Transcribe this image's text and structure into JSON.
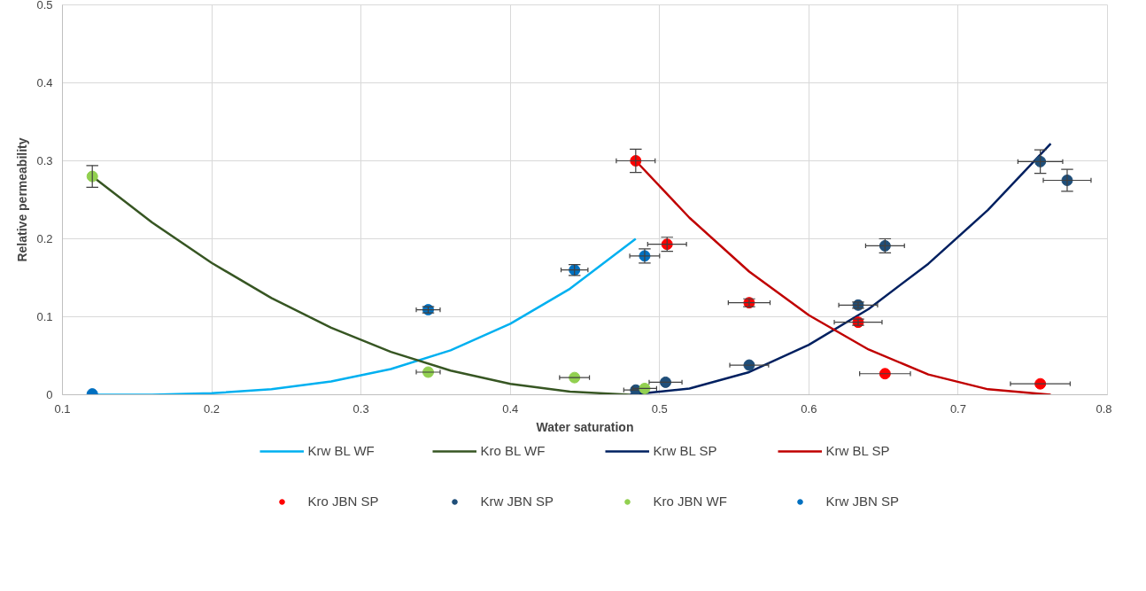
{
  "chart_data": {
    "type": "scatter",
    "xlabel": "Water saturation",
    "ylabel": "Relative permeability",
    "xlim": [
      0.1,
      0.8
    ],
    "xticks": [
      0.1,
      0.2,
      0.3,
      0.4,
      0.5,
      0.6,
      0.7,
      0.8
    ],
    "ylim": [
      0,
      0.5
    ],
    "yticks": [
      0,
      0.1,
      0.2,
      0.3,
      0.4,
      0.5
    ],
    "grid": true,
    "legend": "bottom",
    "marker": "circle",
    "series": [
      {
        "name": "Krw BL WF",
        "type": "line",
        "marker": "none",
        "color": "#00b0f0",
        "x": [
          0.12,
          0.16,
          0.2,
          0.24,
          0.28,
          0.32,
          0.36,
          0.4,
          0.44,
          0.484
        ],
        "values": [
          0,
          0,
          0.002,
          0.007,
          0.017,
          0.033,
          0.057,
          0.091,
          0.136,
          0.2
        ]
      },
      {
        "name": "Kro BL WF",
        "type": "line",
        "marker": "none",
        "color": "#375623",
        "x": [
          0.12,
          0.16,
          0.2,
          0.24,
          0.28,
          0.32,
          0.36,
          0.4,
          0.44,
          0.48
        ],
        "values": [
          0.28,
          0.221,
          0.169,
          0.124,
          0.086,
          0.055,
          0.031,
          0.014,
          0.004,
          0
        ]
      },
      {
        "name": "Krw BL SP",
        "type": "line",
        "marker": "none",
        "color": "#002060",
        "x": [
          0.48,
          0.52,
          0.56,
          0.6,
          0.64,
          0.68,
          0.72,
          0.762
        ],
        "values": [
          0,
          0.008,
          0.029,
          0.064,
          0.11,
          0.168,
          0.237,
          0.322
        ]
      },
      {
        "name": "Krw BL SP",
        "type": "line",
        "marker": "none",
        "color": "#c00000",
        "x": [
          0.484,
          0.52,
          0.56,
          0.6,
          0.64,
          0.68,
          0.72,
          0.762
        ],
        "values": [
          0.3,
          0.227,
          0.158,
          0.102,
          0.058,
          0.026,
          0.007,
          0
        ]
      },
      {
        "name": "Kro JBN SP",
        "color": "#ff0000",
        "x": [
          0.484,
          0.505,
          0.56,
          0.633,
          0.651,
          0.755
        ],
        "values": [
          0.3,
          0.193,
          0.118,
          0.093,
          0.027,
          0.014
        ],
        "errors": [
          0.015,
          0.009,
          0.005,
          0.004,
          null,
          null
        ],
        "xerrors": [
          0.013,
          0.013,
          0.014,
          0.016,
          0.017,
          0.02
        ]
      },
      {
        "name": "Krw JBN SP",
        "color": "#1f4e79",
        "x": [
          0.484,
          0.504,
          0.56,
          0.633,
          0.651,
          0.755,
          0.773
        ],
        "values": [
          0.006,
          0.016,
          0.038,
          0.115,
          0.191,
          0.299,
          0.275
        ],
        "errors": [
          null,
          null,
          null,
          0.004,
          0.009,
          0.015,
          0.014
        ],
        "xerrors": [
          0.008,
          0.011,
          0.013,
          0.013,
          0.013,
          0.015,
          0.016
        ]
      },
      {
        "name": "Kro JBN WF",
        "color": "#92d050",
        "x": [
          0.12,
          0.345,
          0.443,
          0.49
        ],
        "values": [
          0.28,
          0.029,
          0.022,
          0.008
        ],
        "errors": [
          0.014,
          null,
          null,
          null
        ],
        "xerrors": [
          null,
          0.008,
          0.01,
          0.008
        ]
      },
      {
        "name": "Krw JBN SP",
        "color": "#0070c0",
        "x": [
          0.12,
          0.345,
          0.443,
          0.49
        ],
        "values": [
          0.001,
          0.109,
          0.16,
          0.178
        ],
        "errors": [
          null,
          0.004,
          0.007,
          0.009
        ],
        "xerrors": [
          null,
          0.008,
          0.009,
          0.01
        ]
      }
    ]
  }
}
